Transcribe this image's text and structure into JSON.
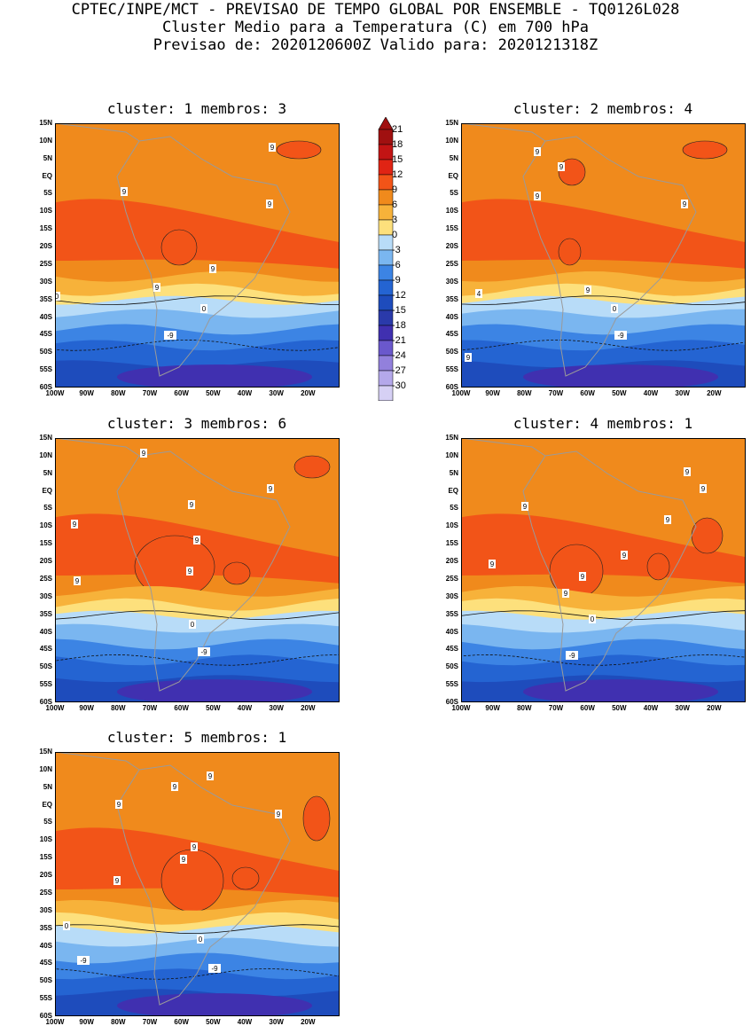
{
  "header": {
    "line1": "CPTEC/INPE/MCT - PREVISAO DE TEMPO GLOBAL POR ENSEMBLE - TQ0126L028",
    "line2": "Cluster Medio para a Temperatura (C) em 700 hPa",
    "line3": "Previsao de: 2020120600Z   Valido para: 2020121318Z"
  },
  "axes": {
    "lat_labels": [
      "15N",
      "10N",
      "5N",
      "EQ",
      "5S",
      "10S",
      "15S",
      "20S",
      "25S",
      "30S",
      "35S",
      "40S",
      "45S",
      "50S",
      "55S",
      "60S"
    ],
    "lon_labels": [
      "100W",
      "90W",
      "80W",
      "70W",
      "60W",
      "50W",
      "40W",
      "30W",
      "20W"
    ],
    "lat_range": [
      -60,
      15
    ],
    "lon_range": [
      -100,
      -10
    ]
  },
  "colorbar": {
    "labels": [
      "21",
      "18",
      "15",
      "12",
      "9",
      "6",
      "3",
      "0",
      "-3",
      "-6",
      "-9",
      "-12",
      "-15",
      "-18",
      "-21",
      "-24",
      "-27",
      "-30"
    ],
    "colors": [
      "#a01010",
      "#c21414",
      "#e02414",
      "#f25418",
      "#f08a1c",
      "#f7b23a",
      "#fde07c",
      "#b8dcf8",
      "#7ab6f0",
      "#3c84e4",
      "#2464d2",
      "#1e4cbc",
      "#2a3aaa",
      "#4030b0",
      "#6a58cc",
      "#9280dc",
      "#b4a8ea",
      "#d6d0f4"
    ]
  },
  "clusters": [
    {
      "title": "cluster: 1   membros: 3",
      "contour_labels": [
        "9",
        "9",
        "9",
        "9",
        "9",
        "0",
        "0",
        "-9"
      ]
    },
    {
      "title": "cluster: 2   membros: 4",
      "contour_labels": [
        "9",
        "9",
        "9",
        "9",
        "9",
        "4",
        "0",
        "-9",
        "9"
      ]
    },
    {
      "title": "cluster: 3   membros: 6",
      "contour_labels": [
        "9",
        "9",
        "9",
        "9",
        "9",
        "9",
        "9",
        "0",
        "-9"
      ]
    },
    {
      "title": "cluster: 4   membros: 1",
      "contour_labels": [
        "9",
        "9",
        "9",
        "9",
        "9",
        "9",
        "9",
        "9",
        "0",
        "-9"
      ]
    },
    {
      "title": "cluster: 5   membros: 1",
      "contour_labels": [
        "9",
        "9",
        "9",
        "9",
        "9",
        "9",
        "9",
        "0",
        "0",
        "-9",
        "-9"
      ]
    }
  ]
}
